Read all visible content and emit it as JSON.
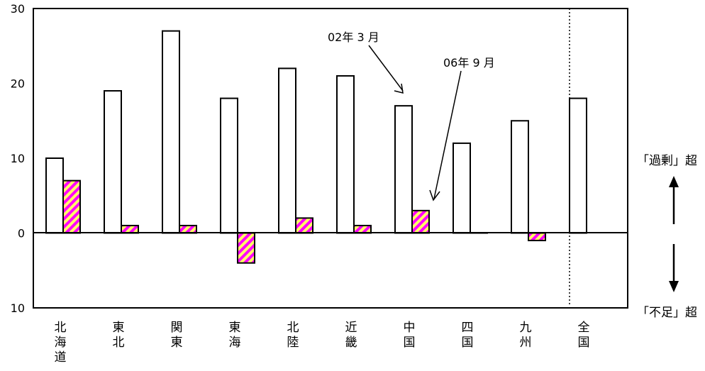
{
  "chart_data": {
    "type": "bar",
    "categories": [
      "北海道",
      "東北",
      "関東",
      "東海",
      "北陸",
      "近畿",
      "中国",
      "四国",
      "九州",
      "全国"
    ],
    "series": [
      {
        "name": "02年 3 月",
        "values": [
          10,
          19,
          27,
          18,
          22,
          21,
          17,
          12,
          15,
          18
        ],
        "style": "white-fill-black-outline"
      },
      {
        "name": "06年 9 月",
        "values": [
          7,
          1,
          1,
          -4,
          2,
          1,
          3,
          0,
          -1,
          null
        ],
        "style": "magenta-yellow-diagonal-hatch"
      }
    ],
    "ylim": [
      -10,
      30
    ],
    "yticks": [
      {
        "value": 30,
        "label": "30"
      },
      {
        "value": 20,
        "label": "20"
      },
      {
        "value": 10,
        "label": "10"
      },
      {
        "value": 0,
        "label": "0"
      },
      {
        "value": -10,
        "label": "10"
      }
    ],
    "annotations": {
      "label_02": "02年 3 月",
      "label_06": "06年 9 月",
      "upper_side": "「過剰」超",
      "lower_side": "「不足」超"
    },
    "separator_before_category": "全国",
    "grid": false,
    "legend": "none"
  },
  "colors": {
    "hatch_a": "#ff00ff",
    "hatch_b": "#ffff66",
    "outline": "#000000",
    "background": "#ffffff"
  }
}
